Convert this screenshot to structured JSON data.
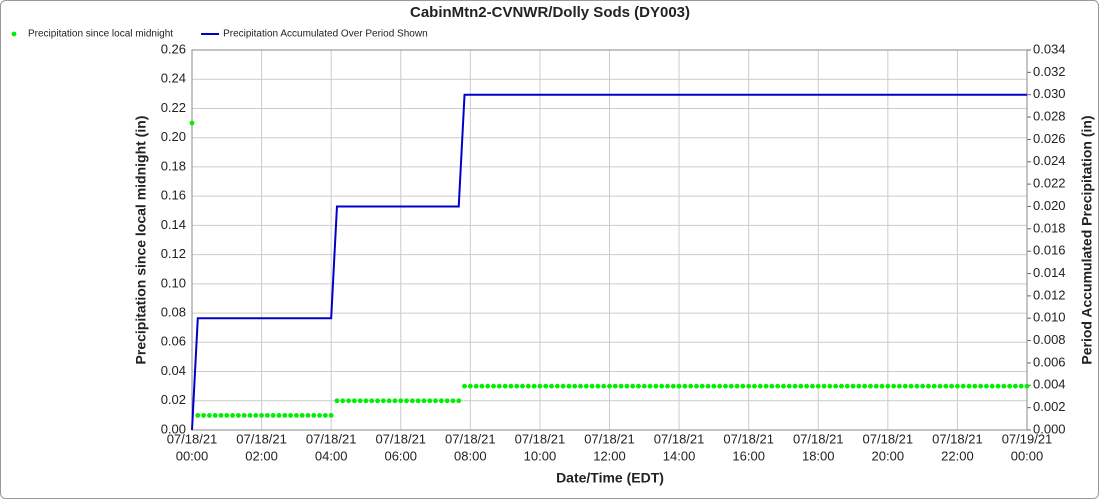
{
  "chart_data": {
    "type": "line",
    "title": "CabinMtn2-CVNWR/Dolly Sods (DY003)",
    "x_label": "Date/Time (EDT)",
    "y_label": "Precipitation since local midnight (in)",
    "y2_label": "Period Accumulated Precipitation (in)",
    "grid": true,
    "legend": "top-left",
    "xlim": [
      0,
      1440
    ],
    "xticks": [
      {
        "value": 0,
        "label": [
          "07/18/21",
          "00:00"
        ]
      },
      {
        "value": 120,
        "label": [
          "07/18/21",
          "02:00"
        ]
      },
      {
        "value": 240,
        "label": [
          "07/18/21",
          "04:00"
        ]
      },
      {
        "value": 360,
        "label": [
          "07/18/21",
          "06:00"
        ]
      },
      {
        "value": 480,
        "label": [
          "07/18/21",
          "08:00"
        ]
      },
      {
        "value": 600,
        "label": [
          "07/18/21",
          "10:00"
        ]
      },
      {
        "value": 720,
        "label": [
          "07/18/21",
          "12:00"
        ]
      },
      {
        "value": 840,
        "label": [
          "07/18/21",
          "14:00"
        ]
      },
      {
        "value": 960,
        "label": [
          "07/18/21",
          "16:00"
        ]
      },
      {
        "value": 1080,
        "label": [
          "07/18/21",
          "18:00"
        ]
      },
      {
        "value": 1200,
        "label": [
          "07/18/21",
          "20:00"
        ]
      },
      {
        "value": 1320,
        "label": [
          "07/18/21",
          "22:00"
        ]
      },
      {
        "value": 1440,
        "label": [
          "07/19/21",
          "00:00"
        ]
      }
    ],
    "ylim": [
      0,
      0.26
    ],
    "yticks": [
      {
        "value": 0,
        "label": "0.00"
      },
      0.02,
      0.04,
      0.06,
      0.08,
      {
        "value": 0.1,
        "label": "0.10"
      },
      0.12,
      0.14,
      0.16,
      0.18,
      {
        "value": 0.2,
        "label": "0.20"
      },
      0.22,
      0.24,
      0.26
    ],
    "y2lim": [
      0,
      0.034
    ],
    "y2ticks": [
      {
        "value": 0,
        "label": "0.000"
      },
      0.002,
      0.004,
      0.006,
      0.008,
      {
        "value": 0.01,
        "label": "0.010"
      },
      0.012,
      0.014,
      0.016,
      0.018,
      {
        "value": 0.02,
        "label": "0.020"
      },
      0.022,
      0.024,
      0.026,
      0.028,
      {
        "value": 0.03,
        "label": "0.030"
      },
      0.032,
      0.034
    ],
    "x": [
      0,
      10,
      20,
      30,
      40,
      50,
      60,
      70,
      80,
      90,
      100,
      110,
      120,
      130,
      140,
      150,
      160,
      170,
      180,
      190,
      200,
      210,
      220,
      230,
      240,
      250,
      260,
      270,
      280,
      290,
      300,
      310,
      320,
      330,
      340,
      350,
      360,
      370,
      380,
      390,
      400,
      410,
      420,
      430,
      440,
      450,
      460,
      470,
      480,
      490,
      500,
      510,
      520,
      530,
      540,
      550,
      560,
      570,
      580,
      590,
      600,
      610,
      620,
      630,
      640,
      650,
      660,
      670,
      680,
      690,
      700,
      710,
      720,
      730,
      740,
      750,
      760,
      770,
      780,
      790,
      800,
      810,
      820,
      830,
      840,
      850,
      860,
      870,
      880,
      890,
      900,
      910,
      920,
      930,
      940,
      950,
      960,
      970,
      980,
      990,
      1000,
      1010,
      1020,
      1030,
      1040,
      1050,
      1060,
      1070,
      1080,
      1090,
      1100,
      1110,
      1120,
      1130,
      1140,
      1150,
      1160,
      1170,
      1180,
      1190,
      1200,
      1210,
      1220,
      1230,
      1240,
      1250,
      1260,
      1270,
      1280,
      1290,
      1300,
      1310,
      1320,
      1330,
      1340,
      1350,
      1360,
      1370,
      1380,
      1390,
      1400,
      1410,
      1420,
      1430,
      1440
    ],
    "series": [
      {
        "name": "Precipitation since local midnight",
        "color": "#00ee00",
        "style": "markers",
        "values": [
          0.21,
          0.01,
          0.01,
          0.01,
          0.01,
          0.01,
          0.01,
          0.01,
          0.01,
          0.01,
          0.01,
          0.01,
          0.01,
          0.01,
          0.01,
          0.01,
          0.01,
          0.01,
          0.01,
          0.01,
          0.01,
          0.01,
          0.01,
          0.01,
          0.01,
          0.02,
          0.02,
          0.02,
          0.02,
          0.02,
          0.02,
          0.02,
          0.02,
          0.02,
          0.02,
          0.02,
          0.02,
          0.02,
          0.02,
          0.02,
          0.02,
          0.02,
          0.02,
          0.02,
          0.02,
          0.02,
          0.02,
          0.03,
          0.03,
          0.03,
          0.03,
          0.03,
          0.03,
          0.03,
          0.03,
          0.03,
          0.03,
          0.03,
          0.03,
          0.03,
          0.03,
          0.03,
          0.03,
          0.03,
          0.03,
          0.03,
          0.03,
          0.03,
          0.03,
          0.03,
          0.03,
          0.03,
          0.03,
          0.03,
          0.03,
          0.03,
          0.03,
          0.03,
          0.03,
          0.03,
          0.03,
          0.03,
          0.03,
          0.03,
          0.03,
          0.03,
          0.03,
          0.03,
          0.03,
          0.03,
          0.03,
          0.03,
          0.03,
          0.03,
          0.03,
          0.03,
          0.03,
          0.03,
          0.03,
          0.03,
          0.03,
          0.03,
          0.03,
          0.03,
          0.03,
          0.03,
          0.03,
          0.03,
          0.03,
          0.03,
          0.03,
          0.03,
          0.03,
          0.03,
          0.03,
          0.03,
          0.03,
          0.03,
          0.03,
          0.03,
          0.03,
          0.03,
          0.03,
          0.03,
          0.03,
          0.03,
          0.03,
          0.03,
          0.03,
          0.03,
          0.03,
          0.03,
          0.03,
          0.03,
          0.03,
          0.03,
          0.03,
          0.03,
          0.03,
          0.03,
          0.03,
          0.03,
          0.03,
          0.03,
          0.03
        ]
      },
      {
        "name": "Precipitation Accumulated Over Period Shown",
        "color": "#0000cc",
        "style": "line",
        "axis": "y2",
        "values": [
          0,
          0.01,
          0.01,
          0.01,
          0.01,
          0.01,
          0.01,
          0.01,
          0.01,
          0.01,
          0.01,
          0.01,
          0.01,
          0.01,
          0.01,
          0.01,
          0.01,
          0.01,
          0.01,
          0.01,
          0.01,
          0.01,
          0.01,
          0.01,
          0.01,
          0.02,
          0.02,
          0.02,
          0.02,
          0.02,
          0.02,
          0.02,
          0.02,
          0.02,
          0.02,
          0.02,
          0.02,
          0.02,
          0.02,
          0.02,
          0.02,
          0.02,
          0.02,
          0.02,
          0.02,
          0.02,
          0.02,
          0.03,
          0.03,
          0.03,
          0.03,
          0.03,
          0.03,
          0.03,
          0.03,
          0.03,
          0.03,
          0.03,
          0.03,
          0.03,
          0.03,
          0.03,
          0.03,
          0.03,
          0.03,
          0.03,
          0.03,
          0.03,
          0.03,
          0.03,
          0.03,
          0.03,
          0.03,
          0.03,
          0.03,
          0.03,
          0.03,
          0.03,
          0.03,
          0.03,
          0.03,
          0.03,
          0.03,
          0.03,
          0.03,
          0.03,
          0.03,
          0.03,
          0.03,
          0.03,
          0.03,
          0.03,
          0.03,
          0.03,
          0.03,
          0.03,
          0.03,
          0.03,
          0.03,
          0.03,
          0.03,
          0.03,
          0.03,
          0.03,
          0.03,
          0.03,
          0.03,
          0.03,
          0.03,
          0.03,
          0.03,
          0.03,
          0.03,
          0.03,
          0.03,
          0.03,
          0.03,
          0.03,
          0.03,
          0.03,
          0.03,
          0.03,
          0.03,
          0.03,
          0.03,
          0.03,
          0.03,
          0.03,
          0.03,
          0.03,
          0.03,
          0.03,
          0.03,
          0.03,
          0.03,
          0.03,
          0.03,
          0.03,
          0.03,
          0.03,
          0.03,
          0.03,
          0.03,
          0.03,
          0.03
        ]
      }
    ]
  }
}
